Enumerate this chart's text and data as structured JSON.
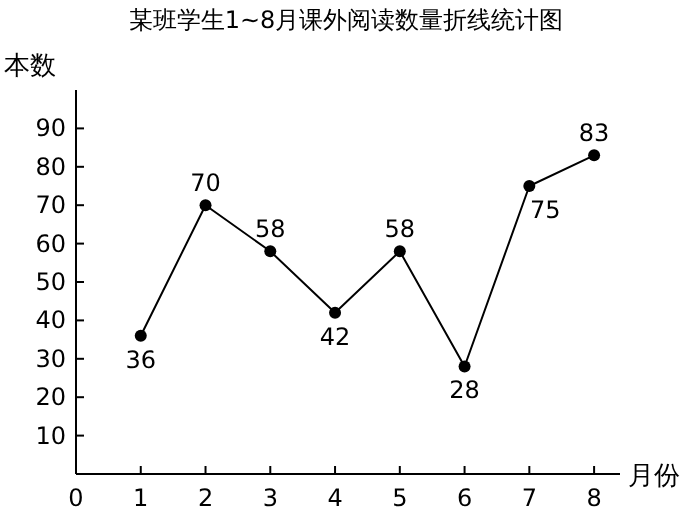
{
  "chart_data": {
    "type": "line",
    "title": "某班学生1~8月课外阅读数量折线统计图",
    "xlabel": "月份",
    "ylabel": "本数",
    "x": [
      1,
      2,
      3,
      4,
      5,
      6,
      7,
      8
    ],
    "series": [
      {
        "color": "#000000",
        "values": [
          36,
          70,
          58,
          42,
          58,
          28,
          75,
          83
        ]
      }
    ],
    "xlim": [
      0,
      8.4
    ],
    "xticks": [
      0,
      1,
      2,
      3,
      4,
      5,
      6,
      7,
      8
    ],
    "ylim": [
      0,
      100
    ],
    "yticks": [
      10,
      20,
      30,
      40,
      50,
      60,
      70,
      80,
      90
    ],
    "data_labels": true,
    "marker": "circle",
    "line_style": "solid",
    "grid": false
  }
}
